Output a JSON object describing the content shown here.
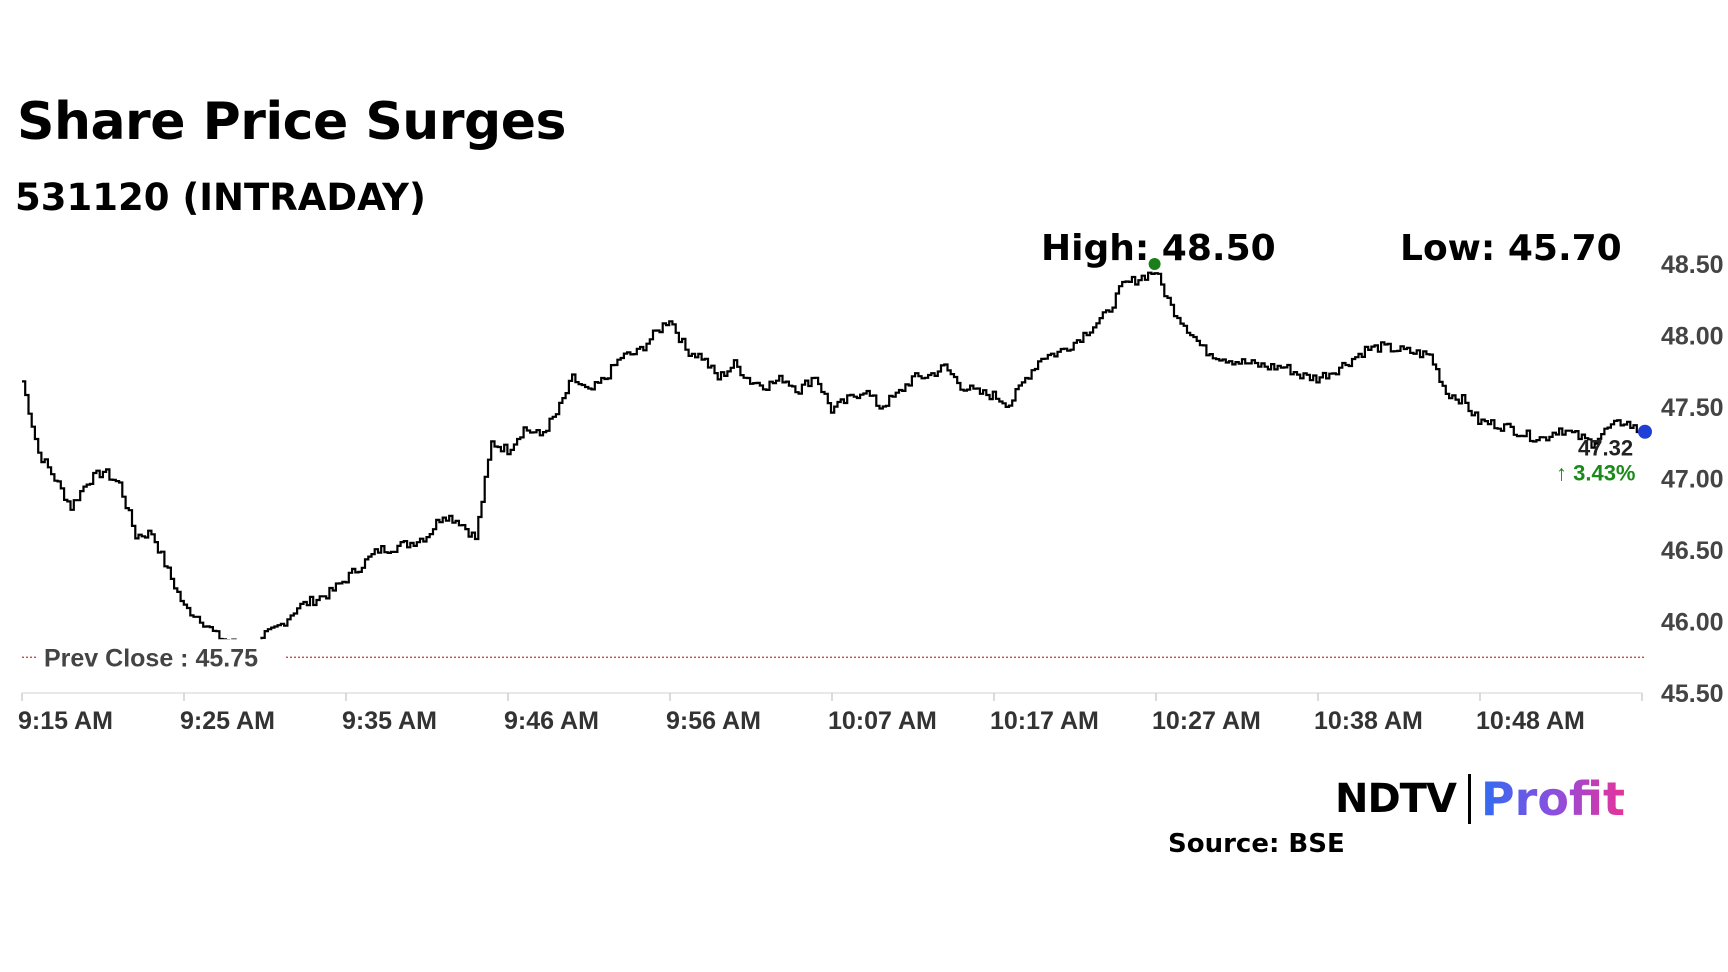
{
  "header": {
    "title": "Share Price Surges",
    "subtitle": "531120 (INTRADAY)",
    "high_label": "High: 48.50",
    "low_label": "Low: 45.70"
  },
  "footer": {
    "source": "Source: BSE",
    "logo_ndtv": "NDTV",
    "logo_profit": "Profit"
  },
  "colors": {
    "line": "#000000",
    "prev_close": "#c0392b",
    "high_marker": "#1a7f1a",
    "low_marker": "#e11d1d",
    "last_marker": "#1f3fd6",
    "change_up": "#1a8a1a"
  },
  "chart_data": {
    "type": "line",
    "title": "Share Price Surges",
    "subtitle": "531120 (INTRADAY)",
    "x_tick_labels": [
      "9:15 AM",
      "9:25 AM",
      "9:35 AM",
      "9:46 AM",
      "9:56 AM",
      "10:07 AM",
      "10:17 AM",
      "10:27 AM",
      "10:38 AM",
      "10:48 AM"
    ],
    "y_tick_labels": [
      "48.50",
      "48.00",
      "47.50",
      "47.00",
      "46.50",
      "46.00",
      "45.50"
    ],
    "ylim": [
      45.5,
      48.5
    ],
    "prev_close": 45.75,
    "prev_close_label": "Prev Close : 45.75",
    "high": 48.5,
    "low": 45.7,
    "last_price": 47.32,
    "last_price_label": "47.32",
    "change_label": "↑ 3.43%",
    "series": [
      {
        "x": [
          0,
          1,
          2,
          3,
          4,
          5,
          6,
          7,
          8,
          9,
          10,
          11,
          12,
          13,
          14,
          15,
          16,
          17,
          18,
          19,
          20,
          21,
          22,
          23,
          24,
          25,
          26,
          27,
          28,
          29,
          30,
          31,
          32,
          33,
          34,
          35,
          36,
          37,
          38,
          39,
          40,
          41,
          42,
          43,
          44,
          45,
          46,
          47,
          48,
          49,
          50,
          51,
          52,
          53,
          54,
          55,
          56,
          57,
          58,
          59,
          60,
          61,
          62,
          63,
          64,
          65,
          66,
          67,
          68,
          69,
          70,
          71,
          72,
          73,
          74,
          75,
          76,
          77,
          78,
          79,
          80,
          81,
          82,
          83,
          84,
          85,
          86,
          87,
          88,
          89,
          90,
          91,
          92,
          93,
          94,
          95,
          96,
          97,
          98,
          99,
          100
        ],
        "values": [
          47.68,
          47.18,
          47.0,
          46.8,
          46.98,
          47.05,
          46.96,
          46.6,
          46.62,
          46.35,
          46.1,
          46.02,
          45.9,
          45.85,
          45.7,
          45.9,
          45.98,
          46.1,
          46.15,
          46.2,
          46.3,
          46.4,
          46.5,
          46.52,
          46.55,
          46.6,
          46.75,
          46.7,
          46.58,
          47.25,
          47.2,
          47.35,
          47.3,
          47.45,
          47.7,
          47.6,
          47.7,
          47.85,
          47.88,
          48.0,
          48.12,
          47.9,
          47.85,
          47.7,
          47.8,
          47.68,
          47.65,
          47.7,
          47.62,
          47.72,
          47.48,
          47.55,
          47.62,
          47.5,
          47.58,
          47.7,
          47.72,
          47.78,
          47.65,
          47.6,
          47.58,
          47.52,
          47.7,
          47.85,
          47.88,
          47.95,
          48.05,
          48.15,
          48.35,
          48.4,
          48.45,
          48.2,
          48.05,
          47.9,
          47.85,
          47.82,
          47.8,
          47.78,
          47.78,
          47.72,
          47.7,
          47.75,
          47.82,
          47.9,
          47.92,
          47.9,
          47.88,
          47.86,
          47.6,
          47.55,
          47.4,
          47.38,
          47.35,
          47.3,
          47.28,
          47.35,
          47.3,
          47.25,
          47.35,
          47.4,
          47.32
        ]
      }
    ]
  }
}
